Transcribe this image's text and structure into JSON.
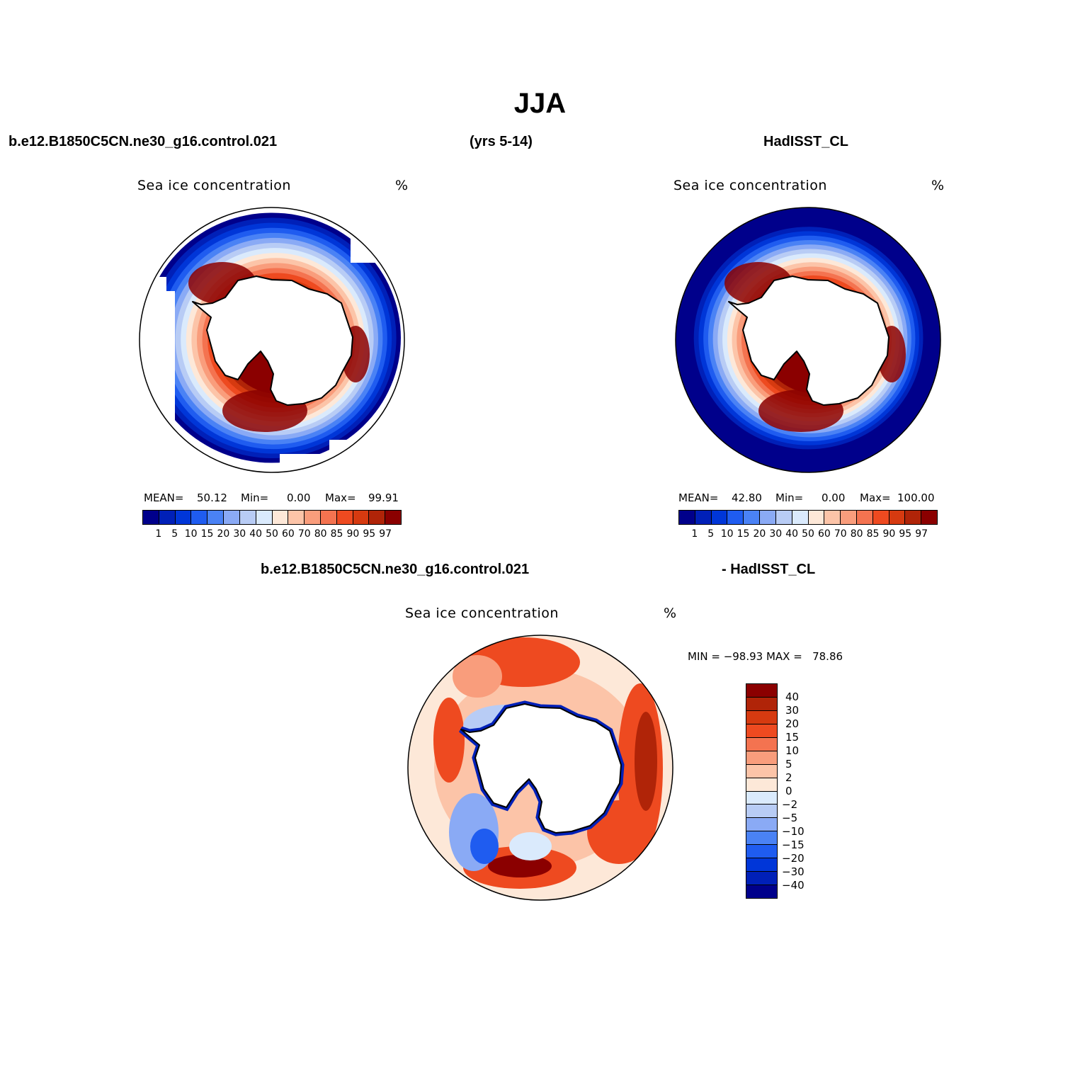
{
  "title": "JJA",
  "header": {
    "case_name": "b.e12.B1850C5CN.ne30_g16.control.021",
    "years": "(yrs 5-14)",
    "obs_name": "HadISST_CL",
    "diff_case": "b.e12.B1850C5CN.ne30_g16.control.021",
    "diff_obs": "- HadISST_CL"
  },
  "colors": {
    "abs_levels": [
      "#00008b",
      "#0020b8",
      "#0036d8",
      "#1f5cf0",
      "#4a82f5",
      "#8aaaf5",
      "#b8ccf5",
      "#daeafc",
      "#fde8d8",
      "#fcc4a8",
      "#f99d7c",
      "#f47350",
      "#ee4a20",
      "#d63a10",
      "#b02408",
      "#8b0000"
    ],
    "diff_levels": [
      "#8b0000",
      "#b02408",
      "#d63a10",
      "#ee4a20",
      "#f47350",
      "#f99d7c",
      "#fcc4a8",
      "#fde8d8",
      "#daeafc",
      "#b8ccf5",
      "#8aaaf5",
      "#4a82f5",
      "#1f5cf0",
      "#0036d8",
      "#0020b8",
      "#00008b"
    ]
  },
  "panels": [
    {
      "id": "model",
      "title": "Sea ice concentration",
      "units": "%",
      "mean_label": "MEAN=",
      "mean_value": "50.12",
      "min_label": "Min=",
      "min_value": "0.00",
      "max_label": "Max=",
      "max_value": "99.91",
      "colorbar_ticks": [
        "1",
        "5",
        "10",
        "15",
        "20",
        "30",
        "40",
        "50",
        "60",
        "70",
        "80",
        "85",
        "90",
        "95",
        "97"
      ]
    },
    {
      "id": "obs",
      "title": "Sea ice concentration",
      "units": "%",
      "mean_label": "MEAN=",
      "mean_value": "42.80",
      "min_label": "Min=",
      "min_value": "0.00",
      "max_label": "Max=",
      "max_value": "100.00",
      "colorbar_ticks": [
        "1",
        "5",
        "10",
        "15",
        "20",
        "30",
        "40",
        "50",
        "60",
        "70",
        "80",
        "85",
        "90",
        "95",
        "97"
      ]
    },
    {
      "id": "diff",
      "title": "Sea ice concentration",
      "units": "%",
      "minmax_text": "MIN = −98.93 MAX =   78.86",
      "colorbar_ticks": [
        "40",
        "30",
        "20",
        "15",
        "10",
        "5",
        "2",
        "0",
        "−2",
        "−5",
        "−10",
        "−15",
        "−20",
        "−30",
        "−40"
      ]
    }
  ]
}
